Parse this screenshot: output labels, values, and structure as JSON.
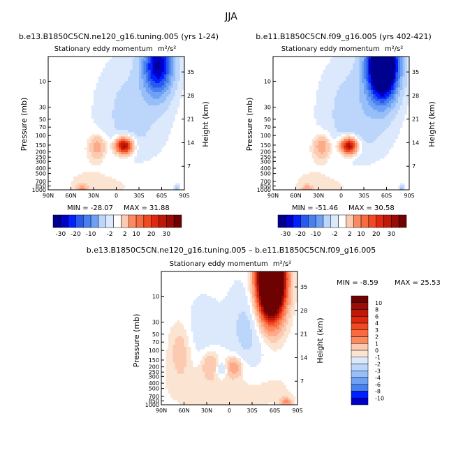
{
  "page_title": "JJA",
  "colors": {
    "diverging_scale": [
      "#00008f",
      "#0000c8",
      "#0020ff",
      "#2858f0",
      "#4880f0",
      "#6ea0f4",
      "#96bef8",
      "#bcd6fb",
      "#dce9fd",
      "#ffffff",
      "#fce4d2",
      "#fccab0",
      "#fcaa88",
      "#fc8a60",
      "#f86a40",
      "#f04a22",
      "#e02810",
      "#c01808",
      "#9a0c04",
      "#6e0202"
    ]
  },
  "chart_data": [
    {
      "type": "heatmap",
      "panel": "top-left",
      "case_title": "b.e13.B1850C5CN.ne120_g16.tuning.005 (yrs 1-24)",
      "title": "Stationary eddy momentum",
      "units": "m²/s²",
      "xlabel": "",
      "x_ticks": [
        "90N",
        "60N",
        "30N",
        "0",
        "30S",
        "60S",
        "90S"
      ],
      "ylabel": "Pressure (mb)",
      "y_ticks": [
        "10",
        "30",
        "50",
        "70",
        "100",
        "150",
        "200",
        "250",
        "300",
        "400",
        "500",
        "700",
        "850",
        "1000"
      ],
      "ylabel_right": "Height (km)",
      "y_ticks_right": [
        "35",
        "28",
        "21",
        "14",
        "7"
      ],
      "min_label": "MIN = -28.07",
      "max_label": "MAX = 31.88",
      "min": -28.07,
      "max": 31.88,
      "features": [
        {
          "lat": -55,
          "p": 5,
          "value": -28,
          "sx": 14,
          "sy": 0.9
        },
        {
          "lat": -10,
          "p": 155,
          "value": 30,
          "sx": 8,
          "sy": 0.25
        },
        {
          "lat": 25,
          "p": 160,
          "value": 9,
          "sx": 8,
          "sy": 0.35
        },
        {
          "lat": -20,
          "p": 40,
          "value": -5,
          "sx": 30,
          "sy": 1.6
        },
        {
          "lat": 0,
          "p": 700,
          "value": 2,
          "sx": 55,
          "sy": 0.7
        },
        {
          "lat": 45,
          "p": 950,
          "value": 10,
          "sx": 5,
          "sy": 0.12
        },
        {
          "lat": -80,
          "p": 930,
          "value": -8,
          "sx": 3,
          "sy": 0.12
        }
      ]
    },
    {
      "type": "heatmap",
      "panel": "top-right",
      "case_title": "b.e11.B1850C5CN.f09_g16.005 (yrs 402-421)",
      "title": "Stationary eddy momentum",
      "units": "m²/s²",
      "xlabel": "",
      "x_ticks": [
        "90N",
        "60N",
        "30N",
        "0",
        "30S",
        "60S",
        "90S"
      ],
      "ylabel": "Pressure (mb)",
      "y_ticks": [
        "10",
        "30",
        "50",
        "70",
        "100",
        "150",
        "200",
        "250",
        "300",
        "400",
        "500",
        "700",
        "850",
        "1000"
      ],
      "ylabel_right": "Height (km)",
      "y_ticks_right": [
        "35",
        "28",
        "21",
        "14",
        "7"
      ],
      "min_label": "MIN = -51.46",
      "max_label": "MAX = 30.58",
      "min": -51.46,
      "max": 30.58,
      "features": [
        {
          "lat": -55,
          "p": 5,
          "value": -52,
          "sx": 14,
          "sy": 1.0
        },
        {
          "lat": -10,
          "p": 155,
          "value": 30,
          "sx": 8,
          "sy": 0.25
        },
        {
          "lat": 25,
          "p": 160,
          "value": 10,
          "sx": 8,
          "sy": 0.35
        },
        {
          "lat": -20,
          "p": 40,
          "value": -6,
          "sx": 30,
          "sy": 1.6
        },
        {
          "lat": 0,
          "p": 700,
          "value": 2,
          "sx": 55,
          "sy": 0.7
        },
        {
          "lat": 45,
          "p": 950,
          "value": 8,
          "sx": 5,
          "sy": 0.12
        },
        {
          "lat": -80,
          "p": 930,
          "value": -8,
          "sx": 3,
          "sy": 0.12
        }
      ]
    },
    {
      "type": "heatmap",
      "panel": "bottom",
      "case_title": "b.e13.B1850C5CN.ne120_g16.tuning.005 – b.e11.B1850C5CN.f09_g16.005",
      "title": "Stationary eddy momentum",
      "units": "m²/s²",
      "xlabel": "",
      "x_ticks": [
        "90N",
        "60N",
        "30N",
        "0",
        "30S",
        "60S",
        "90S"
      ],
      "ylabel": "Pressure (mb)",
      "y_ticks": [
        "10",
        "30",
        "50",
        "70",
        "100",
        "150",
        "200",
        "250",
        "300",
        "400",
        "500",
        "700",
        "850",
        "1000"
      ],
      "ylabel_right": "Height (km)",
      "y_ticks_right": [
        "35",
        "28",
        "21",
        "14",
        "7"
      ],
      "min_label": "MIN =  -8.59",
      "max_label": "MAX =  25.53",
      "min": -8.59,
      "max": 25.53,
      "features": [
        {
          "lat": -55,
          "p": 5,
          "value": 25,
          "sx": 12,
          "sy": 1.1
        },
        {
          "lat": -25,
          "p": 40,
          "value": -1.5,
          "sx": 20,
          "sy": 1.4
        },
        {
          "lat": 35,
          "p": 40,
          "value": -1,
          "sx": 15,
          "sy": 1.0
        },
        {
          "lat": -5,
          "p": 200,
          "value": 3,
          "sx": 8,
          "sy": 0.3
        },
        {
          "lat": 25,
          "p": 180,
          "value": 2,
          "sx": 8,
          "sy": 0.4
        },
        {
          "lat": 10,
          "p": 220,
          "value": -2,
          "sx": 6,
          "sy": 0.25
        },
        {
          "lat": 0,
          "p": 500,
          "value": 0.8,
          "sx": 60,
          "sy": 0.8
        },
        {
          "lat": -75,
          "p": 900,
          "value": 3,
          "sx": 5,
          "sy": 0.15
        },
        {
          "lat": 65,
          "p": 100,
          "value": 1.5,
          "sx": 10,
          "sy": 0.8
        }
      ]
    }
  ],
  "colorbars": {
    "top": {
      "labels": [
        "-30",
        "-20",
        "-10",
        "-2",
        "2",
        "10",
        "20",
        "30"
      ],
      "levels": [
        -30,
        -25,
        -20,
        -15,
        -10,
        -5,
        -2,
        -1,
        1,
        2,
        5,
        10,
        15,
        20,
        25,
        30
      ]
    },
    "bottom": {
      "labels": [
        "10",
        "8",
        "6",
        "4",
        "3",
        "2",
        "1",
        "0",
        "-1",
        "-2",
        "-3",
        "-4",
        "-6",
        "-8",
        "-10"
      ],
      "levels": [
        10,
        8,
        6,
        4,
        3,
        2,
        1,
        0,
        -1,
        -2,
        -3,
        -4,
        -6,
        -8,
        -10
      ]
    }
  }
}
